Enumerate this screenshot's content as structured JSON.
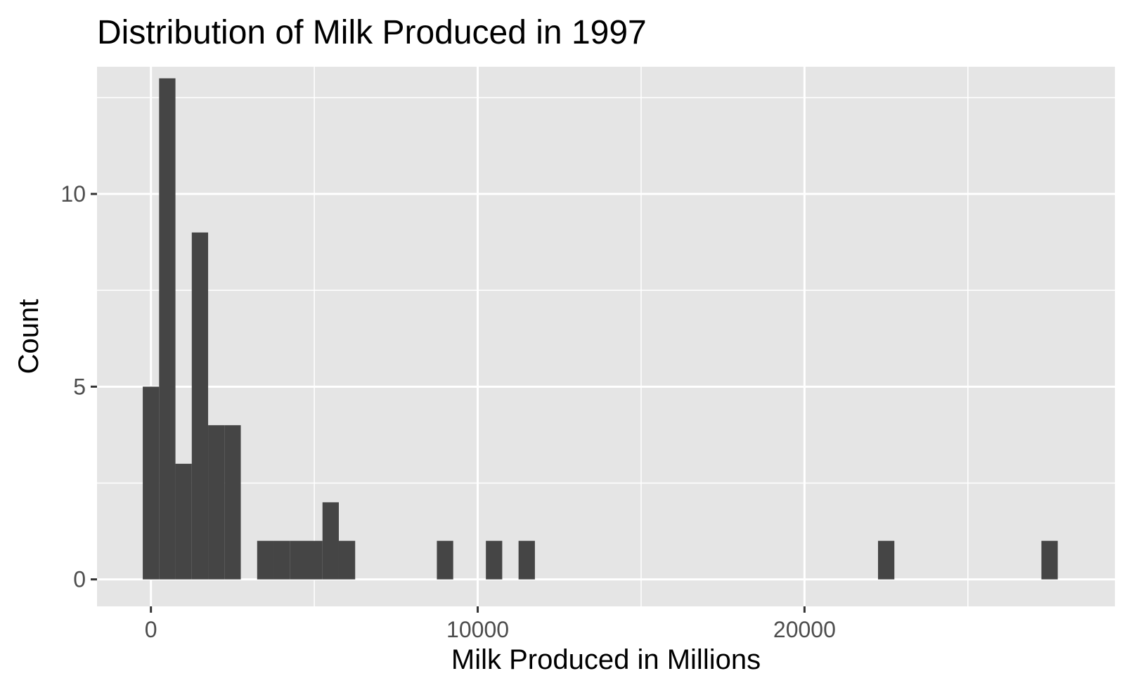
{
  "chart_data": {
    "type": "bar",
    "title": "Distribution of Milk Produced in 1997",
    "xlabel": "Milk Produced in Millions",
    "ylabel": "Count",
    "xlim": [
      -1650,
      29500
    ],
    "ylim": [
      -0.7,
      13.3
    ],
    "x_ticks": [
      0,
      10000,
      20000
    ],
    "x_tick_labels": [
      "0",
      "10000",
      "20000"
    ],
    "y_ticks": [
      0,
      5,
      10
    ],
    "y_tick_labels": [
      "0",
      "5",
      "10"
    ],
    "x_minor": [
      5000,
      15000,
      25000
    ],
    "y_minor": [
      2.5,
      7.5,
      12.5
    ],
    "grid": true,
    "bar_color": "#454545",
    "panel_color": "#e5e5e5",
    "bin_width": 500,
    "bins": [
      {
        "x": 0,
        "count": 5
      },
      {
        "x": 500,
        "count": 13
      },
      {
        "x": 1000,
        "count": 3
      },
      {
        "x": 1500,
        "count": 9
      },
      {
        "x": 2000,
        "count": 4
      },
      {
        "x": 2500,
        "count": 4
      },
      {
        "x": 3500,
        "count": 1
      },
      {
        "x": 4000,
        "count": 1
      },
      {
        "x": 4500,
        "count": 1
      },
      {
        "x": 5000,
        "count": 1
      },
      {
        "x": 5500,
        "count": 2
      },
      {
        "x": 6000,
        "count": 1
      },
      {
        "x": 9000,
        "count": 1
      },
      {
        "x": 10500,
        "count": 1
      },
      {
        "x": 11500,
        "count": 1
      },
      {
        "x": 22500,
        "count": 1
      },
      {
        "x": 27500,
        "count": 1
      }
    ]
  }
}
